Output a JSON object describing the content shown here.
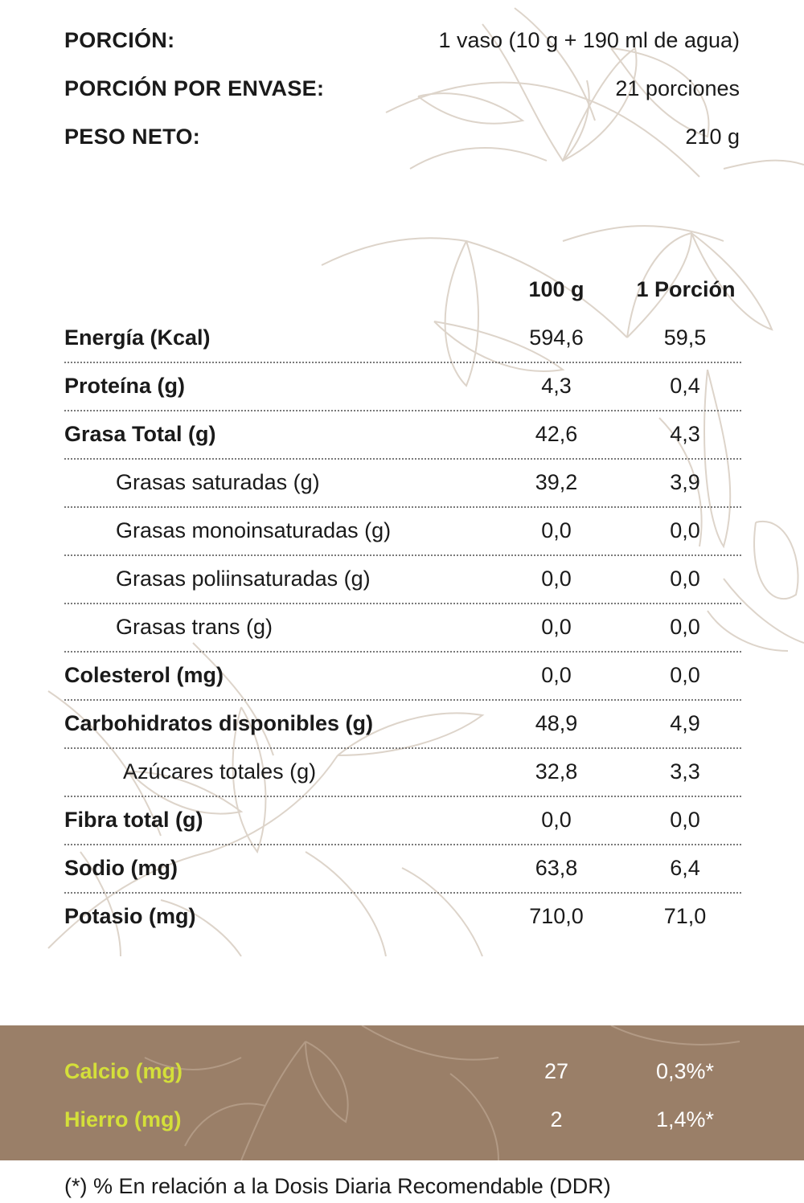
{
  "header": {
    "rows": [
      {
        "label": "PORCIÓN:",
        "value": "1 vaso (10 g + 190 ml de agua)"
      },
      {
        "label": "PORCIÓN POR ENVASE:",
        "value": "21 porciones"
      },
      {
        "label": "PESO NETO:",
        "value": "210 g"
      }
    ]
  },
  "table": {
    "columns": [
      "100 g",
      "1 Porción"
    ],
    "rows": [
      {
        "label": "Energía (Kcal)",
        "v100": "594,6",
        "vpor": "59,5"
      },
      {
        "label": "Proteína (g)",
        "v100": "4,3",
        "vpor": "0,4"
      },
      {
        "label": "Grasa Total (g)",
        "v100": "42,6",
        "vpor": "4,3"
      },
      {
        "label": "Grasas saturadas (g)",
        "v100": "39,2",
        "vpor": "3,9"
      },
      {
        "label": "Grasas monoinsaturadas (g)",
        "v100": "0,0",
        "vpor": "0,0"
      },
      {
        "label": "Grasas poliinsaturadas (g)",
        "v100": "0,0",
        "vpor": "0,0"
      },
      {
        "label": "Grasas trans (g)",
        "v100": "0,0",
        "vpor": "0,0"
      },
      {
        "label": "Colesterol (mg)",
        "v100": "0,0",
        "vpor": "0,0"
      },
      {
        "label": "Carbohidratos disponibles (g)",
        "v100": "48,9",
        "vpor": "4,9"
      },
      {
        "label": "Azúcares totales (g)",
        "v100": "32,8",
        "vpor": "3,3"
      },
      {
        "label": "Fibra total (g)",
        "v100": "0,0",
        "vpor": "0,0"
      },
      {
        "label": "Sodio (mg)",
        "v100": "63,8",
        "vpor": "6,4"
      },
      {
        "label": "Potasio (mg)",
        "v100": "710,0",
        "vpor": "71,0"
      }
    ]
  },
  "minerals": [
    {
      "label": "Calcio (mg)",
      "value": "27",
      "percent": "0,3%*"
    },
    {
      "label": "Hierro (mg)",
      "value": "2",
      "percent": "1,4%*"
    }
  ],
  "footnote": "(*) % En relación a la Dosis Diaria Recomendable (DDR)",
  "colors": {
    "band": "#9a7f68",
    "mineral_label": "#d4df3a",
    "line_art": "#d9cfc4"
  }
}
